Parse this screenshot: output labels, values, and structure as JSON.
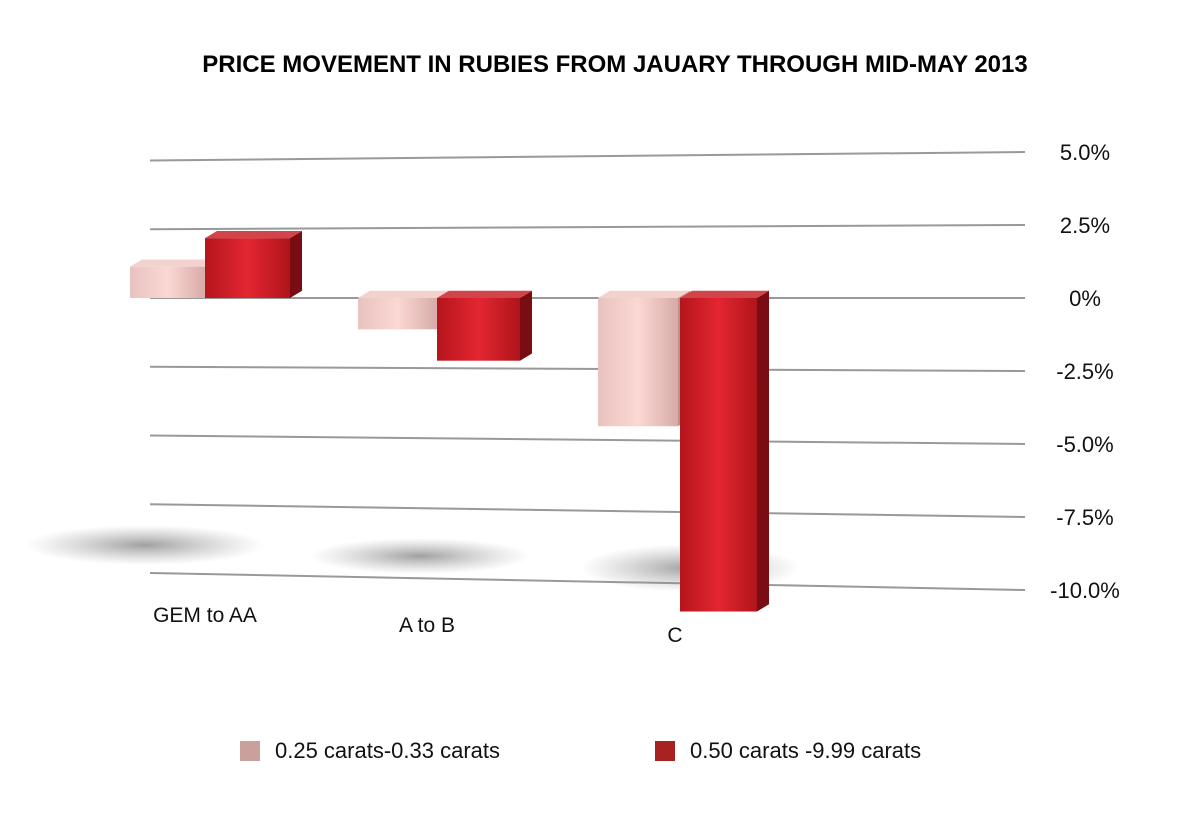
{
  "chart_data": {
    "type": "bar",
    "title": "PRICE MOVEMENT IN RUBIES FROM JAUARY THROUGH MID-MAY 2013",
    "categories": [
      "GEM to AA",
      "A to B",
      "C"
    ],
    "series": [
      {
        "name": "0.25 carats-0.33 carats",
        "values": [
          1.1,
          -1.1,
          -4.5
        ],
        "color": "#d9aeaa"
      },
      {
        "name": "0.50 carats -9.99 carats",
        "values": [
          2.1,
          -2.2,
          -11.0
        ],
        "color": "#c81e24"
      }
    ],
    "yticks": [
      5.0,
      2.5,
      0,
      -2.5,
      -5.0,
      -7.5,
      -10.0
    ],
    "ytick_labels": [
      "5.0%",
      "2.5%",
      "0%",
      "-2.5%",
      "-5.0%",
      "-7.5%",
      "-10.0%"
    ],
    "ylim": [
      -10,
      5
    ],
    "grid": true,
    "legend": "bottom",
    "style": "3d"
  }
}
